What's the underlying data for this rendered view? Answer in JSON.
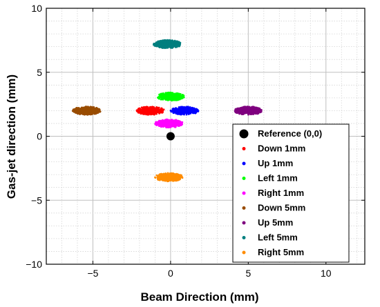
{
  "chart_data": {
    "type": "scatter",
    "title": "",
    "xlabel": "Beam Direction (mm)",
    "ylabel": "Gas-jet direction (mm)",
    "xlim": [
      -8,
      12.5
    ],
    "ylim": [
      -10,
      10
    ],
    "xticks": [
      -5,
      0,
      5,
      10
    ],
    "yticks": [
      -10,
      -5,
      0,
      5,
      10
    ],
    "xtick_labels": [
      "−5",
      "0",
      "5",
      "10"
    ],
    "ytick_labels": [
      "−10",
      "−5",
      "0",
      "5",
      "10"
    ],
    "grid": "major and minor, dotted",
    "legend_position": "bottom-right",
    "reference": {
      "name": "Reference (0,0)",
      "x": 0,
      "y": 0,
      "color": "#000000"
    },
    "series": [
      {
        "name": "Down 1mm",
        "color": "#ff0000",
        "x": -1.3,
        "y": 2.0,
        "spread_x": 0.9,
        "spread_y": 0.32
      },
      {
        "name": "Up 1mm",
        "color": "#0000ff",
        "x": 0.9,
        "y": 2.0,
        "spread_x": 0.9,
        "spread_y": 0.32
      },
      {
        "name": "Left 1mm",
        "color": "#00ff00",
        "x": 0.0,
        "y": 3.1,
        "spread_x": 0.9,
        "spread_y": 0.32
      },
      {
        "name": "Right 1mm",
        "color": "#ff00ff",
        "x": -0.1,
        "y": 1.0,
        "spread_x": 0.9,
        "spread_y": 0.32
      },
      {
        "name": "Down 5mm",
        "color": "#994c00",
        "x": -5.4,
        "y": 2.0,
        "spread_x": 0.9,
        "spread_y": 0.32
      },
      {
        "name": "Up 5mm",
        "color": "#7f007f",
        "x": 5.0,
        "y": 2.0,
        "spread_x": 0.9,
        "spread_y": 0.32
      },
      {
        "name": "Left 5mm",
        "color": "#007f7f",
        "x": -0.2,
        "y": 7.2,
        "spread_x": 0.9,
        "spread_y": 0.32
      },
      {
        "name": "Right 5mm",
        "color": "#ff8c00",
        "x": -0.1,
        "y": -3.2,
        "spread_x": 0.9,
        "spread_y": 0.32
      }
    ]
  }
}
